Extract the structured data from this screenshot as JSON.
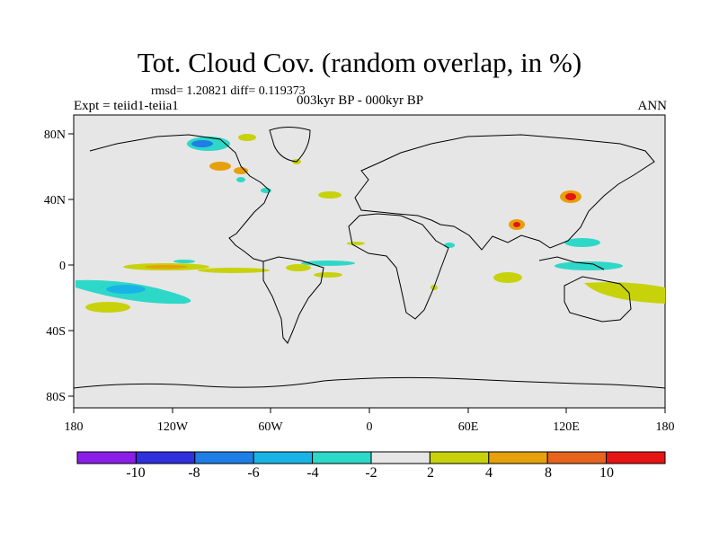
{
  "header": {
    "title": "Tot. Cloud Cov. (random overlap, in %)",
    "stats": "rmsd= 1.20821  diff= 0.119373",
    "experiment": "Expt = teiid1-teiia1",
    "period": "003kyr BP - 000kyr BP",
    "season": "ANN"
  },
  "axes": {
    "lon_ticks": [
      "180",
      "120W",
      "60W",
      "0",
      "60E",
      "120E",
      "180"
    ],
    "lat_ticks": [
      "80N",
      "40N",
      "0",
      "40S",
      "80S"
    ]
  },
  "colorbar": {
    "labels": [
      "-10",
      "-8",
      "-6",
      "-4",
      "-2",
      "2",
      "4",
      "8",
      "10"
    ],
    "colors": [
      "#8a1ee6",
      "#3030dc",
      "#1e7ee6",
      "#19b4e6",
      "#2ed8c8",
      "#e6e6e6",
      "#c8d20a",
      "#e6a00a",
      "#e6641e",
      "#e61414"
    ]
  },
  "colors": {
    "background": "#e6e6e6",
    "coast": "#000000"
  }
}
